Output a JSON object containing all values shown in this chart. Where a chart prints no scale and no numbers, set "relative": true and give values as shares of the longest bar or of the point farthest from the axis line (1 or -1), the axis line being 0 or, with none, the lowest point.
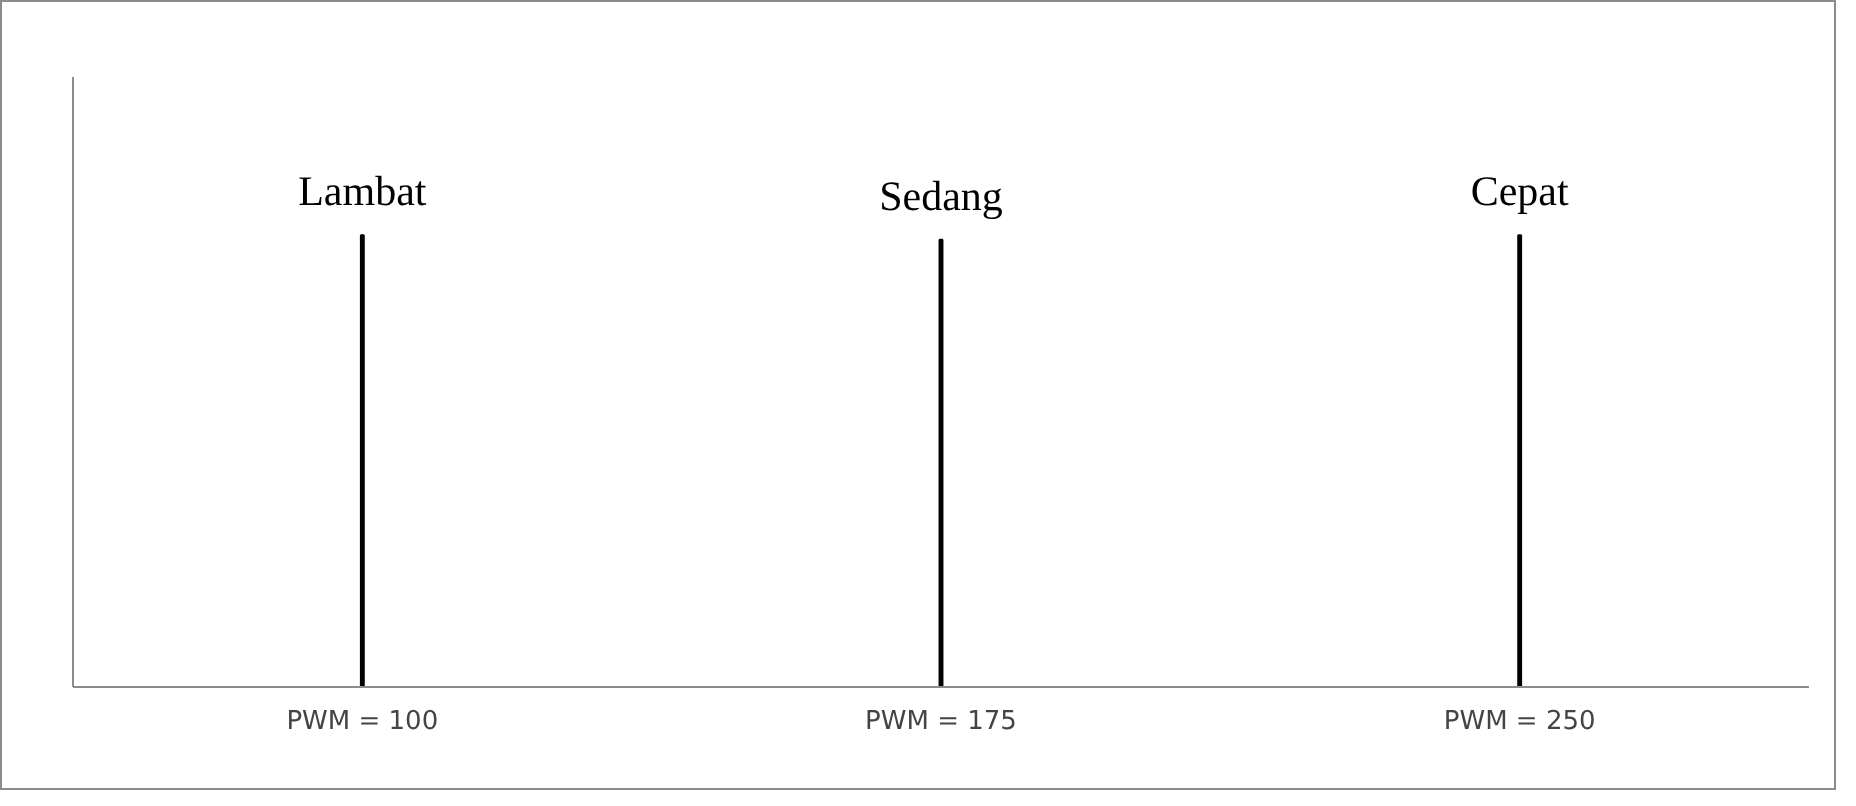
{
  "chart_data": {
    "type": "bar",
    "relative": true,
    "categories": [
      "PWM = 100",
      "PWM = 175",
      "PWM = 250"
    ],
    "values": [
      1,
      0.99,
      1
    ],
    "color": "#000000",
    "grid": false,
    "annotations": [
      {
        "text": "Lambat",
        "x": "PWM = 100",
        "y": 1
      },
      {
        "text": "Sedang",
        "x": "PWM = 175",
        "y": 0.99
      },
      {
        "text": "Cepat",
        "x": "PWM = 250",
        "y": 1
      }
    ]
  }
}
